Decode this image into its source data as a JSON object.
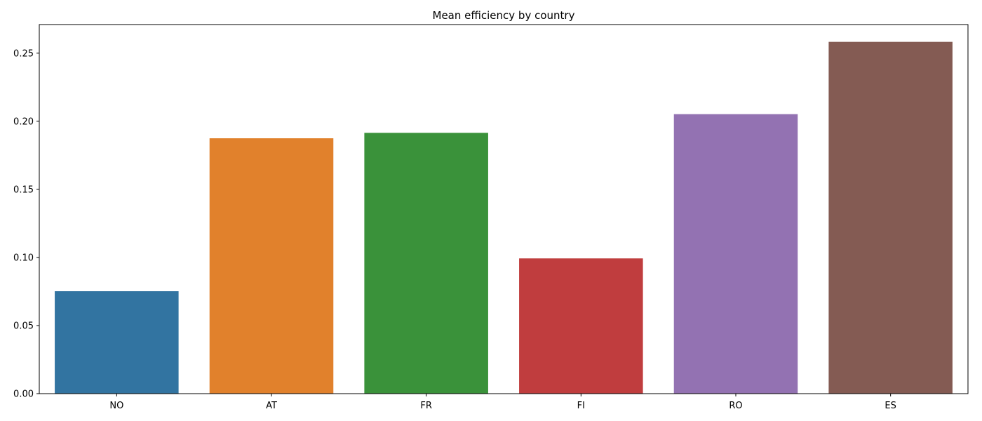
{
  "chart_data": {
    "type": "bar",
    "title": "Mean efficiency by country",
    "xlabel": "",
    "ylabel": "",
    "categories": [
      "NO",
      "AT",
      "FR",
      "FI",
      "RO",
      "ES"
    ],
    "values": [
      0.0752,
      0.1875,
      0.1915,
      0.0993,
      0.2052,
      0.2583
    ],
    "colors": [
      "#3274a1",
      "#e1812c",
      "#3a923a",
      "#c03d3e",
      "#9372b2",
      "#845b53"
    ],
    "ylim": [
      0,
      0.271
    ],
    "yticks": [
      0.0,
      0.05,
      0.1,
      0.15,
      0.2,
      0.25
    ],
    "ytick_labels": [
      "0.00",
      "0.05",
      "0.10",
      "0.15",
      "0.20",
      "0.25"
    ],
    "grid": false,
    "legend": "none"
  }
}
